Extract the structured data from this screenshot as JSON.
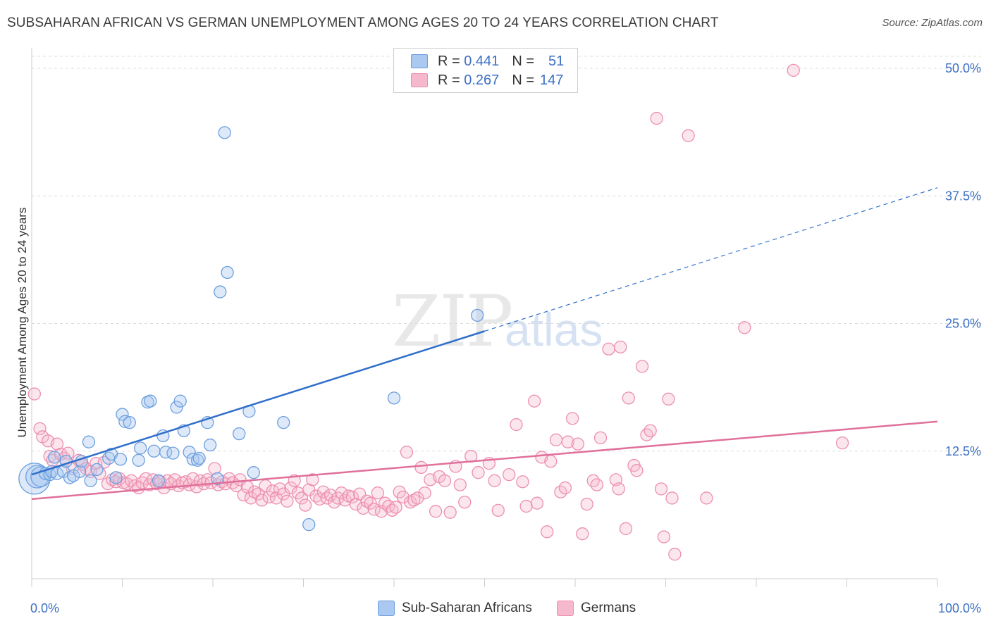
{
  "title": "SUBSAHARAN AFRICAN VS GERMAN UNEMPLOYMENT AMONG AGES 20 TO 24 YEARS CORRELATION CHART",
  "source": "Source: ZipAtlas.com",
  "watermark": {
    "zip": "ZIP",
    "atlas": "atlas"
  },
  "legend": {
    "r_label": "R =",
    "n_label": "N =",
    "rows": [
      {
        "r": "0.441",
        "n": "51",
        "color": "#aac8f0"
      },
      {
        "r": "0.267",
        "n": "147",
        "color": "#f6b8cc"
      }
    ]
  },
  "colors": {
    "blue": "#6c9fde",
    "blue_line": "#2f6fcb",
    "pink": "#ec8fb0",
    "pink_line": "#e0709a",
    "tick": "#3b6fc4"
  },
  "chart_data": {
    "type": "scatter",
    "xlabel": "",
    "ylabel": "Unemployment Among Ages 20 to 24 years",
    "xlim": [
      0,
      100
    ],
    "ylim": [
      0,
      52
    ],
    "x_tick_labels": [
      "0.0%",
      "100.0%"
    ],
    "y_ticks": [
      12.5,
      25.0,
      37.5,
      50.0
    ],
    "y_tick_labels": [
      "12.5%",
      "25.0%",
      "37.5%",
      "50.0%"
    ],
    "grid": true,
    "legend_position": "top-center",
    "series": [
      {
        "name": "Sub-Saharan Africans",
        "color": "#6c9fde",
        "trend": {
          "x": [
            0,
            100
          ],
          "y": [
            10.2,
            38.3
          ],
          "solid_until": 50
        },
        "points": [
          [
            0.3,
            9.8
          ],
          [
            0.6,
            10.0
          ],
          [
            1.0,
            10.0
          ],
          [
            1.5,
            10.3
          ],
          [
            2.0,
            10.2
          ],
          [
            2.2,
            10.5
          ],
          [
            2.5,
            11.9
          ],
          [
            2.8,
            10.3
          ],
          [
            3.5,
            10.5
          ],
          [
            3.8,
            11.5
          ],
          [
            4.2,
            9.9
          ],
          [
            4.6,
            10.1
          ],
          [
            5.3,
            10.5
          ],
          [
            5.5,
            11.5
          ],
          [
            6.3,
            13.4
          ],
          [
            6.5,
            9.6
          ],
          [
            7.2,
            10.7
          ],
          [
            8.5,
            11.8
          ],
          [
            8.8,
            12.2
          ],
          [
            9.3,
            9.9
          ],
          [
            9.8,
            11.7
          ],
          [
            10.0,
            16.1
          ],
          [
            10.3,
            15.4
          ],
          [
            10.8,
            15.3
          ],
          [
            11.8,
            11.6
          ],
          [
            12.0,
            12.8
          ],
          [
            12.8,
            17.3
          ],
          [
            13.1,
            17.4
          ],
          [
            13.5,
            12.5
          ],
          [
            14.0,
            9.6
          ],
          [
            14.5,
            14.0
          ],
          [
            14.8,
            12.4
          ],
          [
            15.6,
            12.3
          ],
          [
            16.0,
            16.8
          ],
          [
            16.4,
            17.4
          ],
          [
            16.8,
            14.5
          ],
          [
            17.4,
            12.4
          ],
          [
            17.8,
            11.7
          ],
          [
            18.3,
            11.6
          ],
          [
            18.5,
            11.8
          ],
          [
            19.4,
            15.3
          ],
          [
            19.7,
            13.1
          ],
          [
            20.5,
            9.8
          ],
          [
            20.8,
            28.1
          ],
          [
            21.3,
            43.7
          ],
          [
            21.6,
            30.0
          ],
          [
            22.9,
            14.2
          ],
          [
            24.0,
            16.4
          ],
          [
            24.5,
            10.4
          ],
          [
            27.8,
            15.3
          ],
          [
            30.6,
            5.3
          ],
          [
            49.2,
            25.8
          ],
          [
            40.0,
            17.7
          ]
        ],
        "sizes": [
          [
            0.3,
            22
          ],
          [
            0.6,
            16
          ],
          [
            1.0,
            14
          ]
        ]
      },
      {
        "name": "Germans",
        "color": "#ec8fb0",
        "trend": {
          "x": [
            0,
            100
          ],
          "y": [
            7.8,
            15.4
          ]
        },
        "points": [
          [
            0.3,
            18.1
          ],
          [
            0.9,
            14.7
          ],
          [
            1.2,
            13.9
          ],
          [
            1.8,
            13.5
          ],
          [
            2.0,
            12.0
          ],
          [
            2.3,
            11.6
          ],
          [
            2.8,
            13.2
          ],
          [
            3.2,
            12.2
          ],
          [
            3.6,
            11.8
          ],
          [
            4.0,
            12.3
          ],
          [
            4.5,
            10.8
          ],
          [
            5.2,
            11.6
          ],
          [
            5.6,
            11.2
          ],
          [
            6.0,
            10.8
          ],
          [
            6.5,
            10.5
          ],
          [
            7.1,
            11.3
          ],
          [
            7.5,
            10.3
          ],
          [
            8.0,
            11.4
          ],
          [
            8.4,
            9.3
          ],
          [
            8.9,
            9.7
          ],
          [
            9.3,
            9.5
          ],
          [
            9.7,
            9.8
          ],
          [
            10.1,
            9.4
          ],
          [
            10.5,
            9.3
          ],
          [
            11.0,
            9.6
          ],
          [
            11.4,
            9.1
          ],
          [
            11.8,
            8.9
          ],
          [
            12.2,
            9.4
          ],
          [
            12.6,
            9.8
          ],
          [
            13.0,
            9.2
          ],
          [
            13.4,
            9.7
          ],
          [
            13.8,
            9.3
          ],
          [
            14.2,
            9.5
          ],
          [
            14.6,
            8.9
          ],
          [
            15.0,
            9.6
          ],
          [
            15.4,
            9.3
          ],
          [
            15.8,
            9.7
          ],
          [
            16.2,
            9.1
          ],
          [
            16.6,
            9.4
          ],
          [
            17.0,
            9.5
          ],
          [
            17.4,
            9.2
          ],
          [
            17.8,
            9.8
          ],
          [
            18.2,
            9.0
          ],
          [
            18.6,
            9.6
          ],
          [
            19.0,
            9.3
          ],
          [
            19.4,
            9.7
          ],
          [
            19.8,
            9.4
          ],
          [
            20.2,
            10.8
          ],
          [
            20.6,
            9.2
          ],
          [
            21.0,
            9.5
          ],
          [
            21.4,
            9.3
          ],
          [
            21.8,
            9.8
          ],
          [
            22.2,
            9.4
          ],
          [
            22.6,
            9.1
          ],
          [
            23.0,
            9.7
          ],
          [
            23.4,
            8.2
          ],
          [
            23.8,
            9.0
          ],
          [
            24.2,
            7.9
          ],
          [
            24.6,
            8.5
          ],
          [
            25.0,
            8.3
          ],
          [
            25.4,
            7.7
          ],
          [
            25.8,
            9.1
          ],
          [
            26.2,
            8.0
          ],
          [
            26.6,
            8.6
          ],
          [
            27.0,
            7.9
          ],
          [
            27.4,
            8.8
          ],
          [
            27.8,
            8.3
          ],
          [
            28.2,
            7.6
          ],
          [
            28.6,
            8.9
          ],
          [
            29.0,
            9.6
          ],
          [
            29.4,
            8.4
          ],
          [
            29.8,
            7.9
          ],
          [
            30.2,
            7.2
          ],
          [
            30.6,
            8.7
          ],
          [
            31.0,
            9.7
          ],
          [
            31.4,
            8.1
          ],
          [
            31.8,
            7.8
          ],
          [
            32.2,
            8.5
          ],
          [
            32.6,
            7.9
          ],
          [
            33.0,
            8.2
          ],
          [
            33.4,
            7.5
          ],
          [
            33.8,
            7.9
          ],
          [
            34.2,
            8.4
          ],
          [
            34.6,
            7.7
          ],
          [
            35.0,
            8.1
          ],
          [
            35.4,
            8.0
          ],
          [
            35.8,
            7.3
          ],
          [
            36.2,
            8.3
          ],
          [
            36.6,
            6.9
          ],
          [
            37.0,
            7.6
          ],
          [
            37.4,
            7.4
          ],
          [
            37.8,
            6.8
          ],
          [
            38.2,
            8.4
          ],
          [
            38.6,
            6.6
          ],
          [
            39.0,
            7.4
          ],
          [
            39.4,
            7.1
          ],
          [
            39.8,
            6.7
          ],
          [
            40.2,
            7.0
          ],
          [
            40.6,
            8.5
          ],
          [
            41.0,
            8.0
          ],
          [
            41.4,
            12.4
          ],
          [
            41.8,
            7.5
          ],
          [
            42.2,
            7.7
          ],
          [
            42.6,
            7.9
          ],
          [
            43.0,
            10.9
          ],
          [
            43.4,
            8.4
          ],
          [
            44.0,
            9.7
          ],
          [
            44.6,
            6.6
          ],
          [
            45.0,
            10.0
          ],
          [
            45.6,
            9.6
          ],
          [
            46.2,
            6.5
          ],
          [
            46.8,
            11.0
          ],
          [
            47.3,
            9.2
          ],
          [
            47.8,
            7.5
          ],
          [
            48.5,
            12.0
          ],
          [
            49.3,
            10.4
          ],
          [
            50.5,
            11.3
          ],
          [
            51.1,
            9.6
          ],
          [
            51.5,
            6.7
          ],
          [
            52.7,
            10.2
          ],
          [
            53.5,
            15.1
          ],
          [
            54.2,
            9.5
          ],
          [
            54.6,
            7.1
          ],
          [
            55.5,
            17.4
          ],
          [
            55.8,
            7.4
          ],
          [
            56.3,
            11.9
          ],
          [
            56.9,
            4.6
          ],
          [
            57.3,
            11.5
          ],
          [
            57.9,
            13.6
          ],
          [
            58.4,
            8.5
          ],
          [
            58.9,
            8.9
          ],
          [
            59.2,
            13.4
          ],
          [
            59.7,
            15.7
          ],
          [
            60.3,
            13.2
          ],
          [
            60.8,
            4.4
          ],
          [
            61.3,
            7.3
          ],
          [
            62.0,
            9.6
          ],
          [
            62.4,
            9.2
          ],
          [
            62.8,
            13.8
          ],
          [
            63.7,
            22.5
          ],
          [
            64.5,
            9.7
          ],
          [
            64.8,
            8.8
          ],
          [
            65.0,
            22.7
          ],
          [
            65.6,
            4.9
          ],
          [
            65.9,
            17.7
          ],
          [
            66.5,
            11.1
          ],
          [
            66.8,
            10.6
          ],
          [
            67.4,
            20.8
          ],
          [
            67.9,
            14.1
          ],
          [
            68.3,
            14.5
          ],
          [
            69.0,
            45.1
          ],
          [
            69.5,
            8.8
          ],
          [
            69.8,
            4.1
          ],
          [
            70.3,
            17.6
          ],
          [
            70.7,
            7.9
          ],
          [
            71.0,
            2.4
          ],
          [
            72.5,
            43.4
          ],
          [
            74.5,
            7.9
          ],
          [
            78.7,
            24.6
          ],
          [
            84.1,
            49.8
          ],
          [
            89.5,
            13.3
          ]
        ]
      }
    ]
  },
  "bottom_legend": [
    {
      "label": "Sub-Saharan Africans",
      "color": "#aac8f0"
    },
    {
      "label": "Germans",
      "color": "#f6b8cc"
    }
  ]
}
